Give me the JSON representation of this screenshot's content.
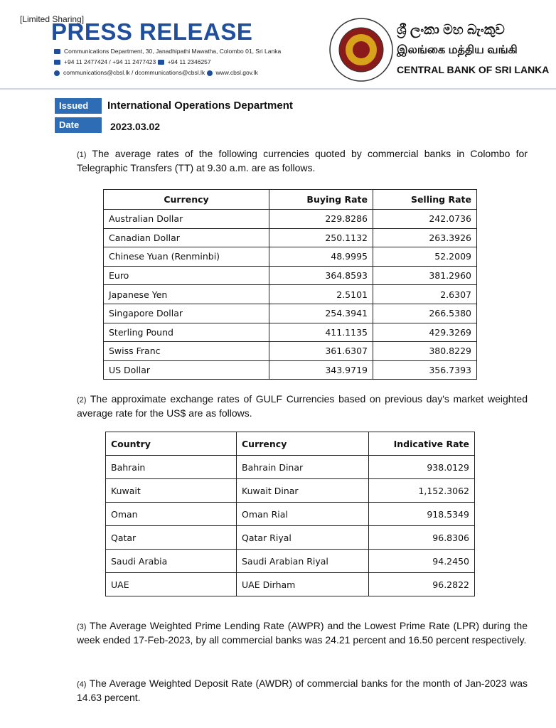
{
  "banner": "[Limited Sharing]",
  "header": {
    "title": "PRESS RELEASE",
    "address": "Communications Department, 30, Janadhipathi Mawatha, Colombo 01, Sri Lanka",
    "phone": "+94 11 2477424 / +94 11 2477423",
    "fax": "+94 11  2346257",
    "email": "communications@cbsl.lk / dcommunications@cbsl.lk",
    "web": "www.cbsl.gov.lk",
    "name_sinhala": "ශ්‍රී ලංකා මහ බැංකුව",
    "name_tamil": "இலங்கை மத்திய வங்கி",
    "name_english": "CENTRAL BANK OF SRI LANKA"
  },
  "meta": {
    "issued_by_label": "Issued By",
    "issued_by": "International Operations Department",
    "date_label": "Date",
    "date": "2023.03.02"
  },
  "sections": [
    {
      "number": "(1)",
      "text": "The average rates of the following currencies quoted by commercial banks in Colombo for Telegraphic Transfers (TT) at 9.30 a.m. are as follows.",
      "table": {
        "headers": [
          "Currency",
          "Buying Rate",
          "Selling Rate"
        ],
        "rows": [
          [
            "Australian Dollar",
            "229.8286",
            "242.0736"
          ],
          [
            "Canadian Dollar",
            "250.1132",
            "263.3926"
          ],
          [
            "Chinese Yuan (Renminbi)",
            "48.9995",
            "52.2009"
          ],
          [
            "Euro",
            "364.8593",
            "381.2960"
          ],
          [
            "Japanese Yen",
            "2.5101",
            "2.6307"
          ],
          [
            "Singapore Dollar",
            "254.3941",
            "266.5380"
          ],
          [
            "Sterling Pound",
            "411.1135",
            "429.3269"
          ],
          [
            "Swiss Franc",
            "361.6307",
            "380.8229"
          ],
          [
            "US Dollar",
            "343.9719",
            "356.7393"
          ]
        ]
      }
    },
    {
      "number": "(2)",
      "text": "The approximate exchange rates of GULF Currencies based on previous day's market weighted average rate for the US$ are as follows.",
      "table": {
        "headers": [
          "Country",
          "Currency",
          "Indicative Rate"
        ],
        "rows": [
          [
            "Bahrain",
            "Bahrain Dinar",
            "938.0129"
          ],
          [
            "Kuwait",
            "Kuwait Dinar",
            "1,152.3062"
          ],
          [
            "Oman",
            "Oman Rial",
            "918.5349"
          ],
          [
            "Qatar",
            "Qatar Riyal",
            "96.8306"
          ],
          [
            "Saudi Arabia",
            "Saudi Arabian Riyal",
            "94.2450"
          ],
          [
            "UAE",
            "UAE Dirham",
            "96.2822"
          ]
        ]
      }
    },
    {
      "number": "(3)",
      "text": "The Average Weighted Prime Lending Rate (AWPR) and the Lowest Prime Rate (LPR) during the week ended 17-Feb-2023, by all commercial banks was 24.21 percent and 16.50 percent respectively."
    },
    {
      "number": "(4)",
      "text": "The Average Weighted Deposit Rate (AWDR) of commercial banks for the month of Jan-2023 was 14.63 percent."
    }
  ]
}
